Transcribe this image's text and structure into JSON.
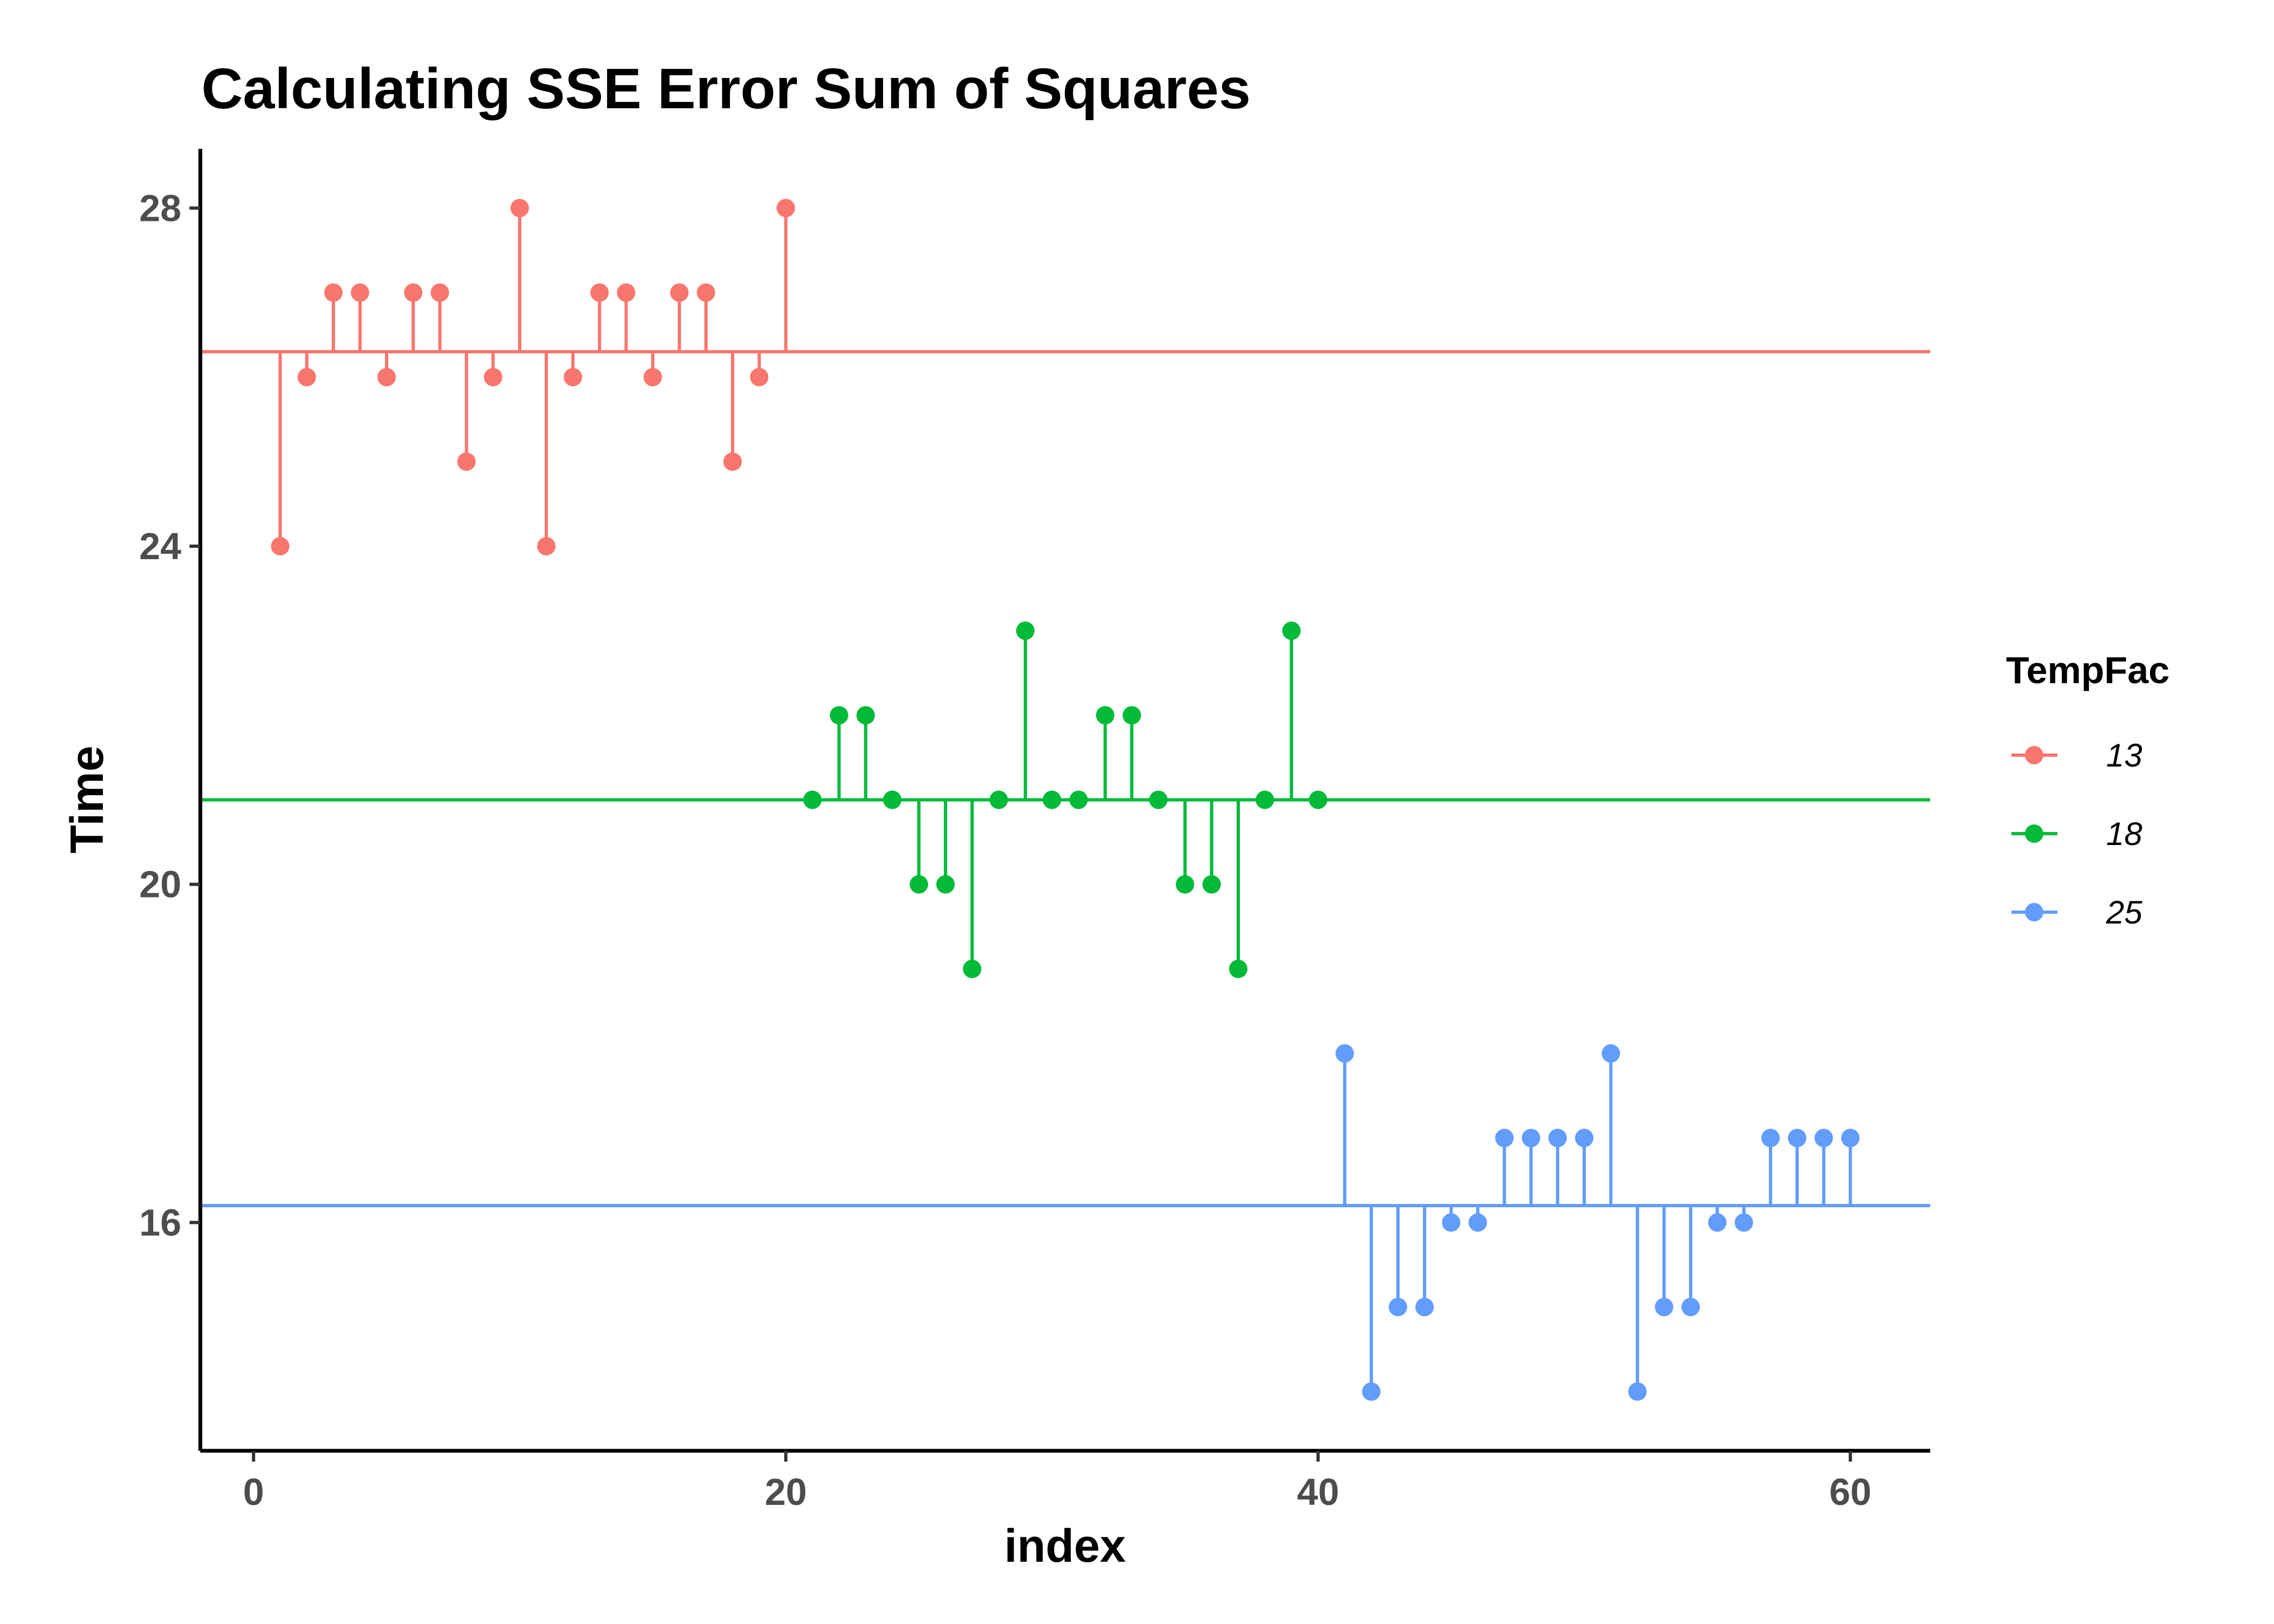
{
  "chart_data": {
    "type": "scatter",
    "title": "Calculating SSE Error Sum of Squares",
    "xlabel": "index",
    "ylabel": "Time",
    "xlim": [
      -2,
      63
    ],
    "ylim": [
      13.3,
      28.7
    ],
    "x_ticks": [
      0,
      20,
      40,
      60
    ],
    "y_ticks": [
      16,
      20,
      24,
      28
    ],
    "grid": false,
    "legend": {
      "title": "TempFac",
      "position": "right"
    },
    "series": [
      {
        "name": "13",
        "color": "#F8766D",
        "mean": 26.3,
        "x": [
          1,
          2,
          3,
          4,
          5,
          6,
          7,
          8,
          9,
          10,
          11,
          12,
          13,
          14,
          15,
          16,
          17,
          18,
          19,
          20
        ],
        "y": [
          24,
          26,
          27,
          27,
          26,
          27,
          27,
          25,
          26,
          28,
          24,
          26,
          27,
          27,
          26,
          27,
          27,
          25,
          26,
          28
        ]
      },
      {
        "name": "18",
        "color": "#00BA38",
        "mean": 21.0,
        "x": [
          21,
          22,
          23,
          24,
          25,
          26,
          27,
          28,
          29,
          30,
          31,
          32,
          33,
          34,
          35,
          36,
          37,
          38,
          39,
          40
        ],
        "y": [
          21,
          22,
          22,
          21,
          20,
          20,
          19,
          21,
          23,
          21,
          21,
          22,
          22,
          21,
          20,
          20,
          19,
          21,
          23,
          21
        ]
      },
      {
        "name": "25",
        "color": "#619CFF",
        "mean": 16.2,
        "x": [
          41,
          42,
          43,
          44,
          45,
          46,
          47,
          48,
          49,
          50,
          51,
          52,
          53,
          54,
          55,
          56,
          57,
          58,
          59,
          60
        ],
        "y": [
          18,
          14,
          15,
          15,
          16,
          16,
          17,
          17,
          17,
          17,
          18,
          14,
          15,
          15,
          16,
          16,
          17,
          17,
          17,
          17
        ]
      }
    ]
  }
}
